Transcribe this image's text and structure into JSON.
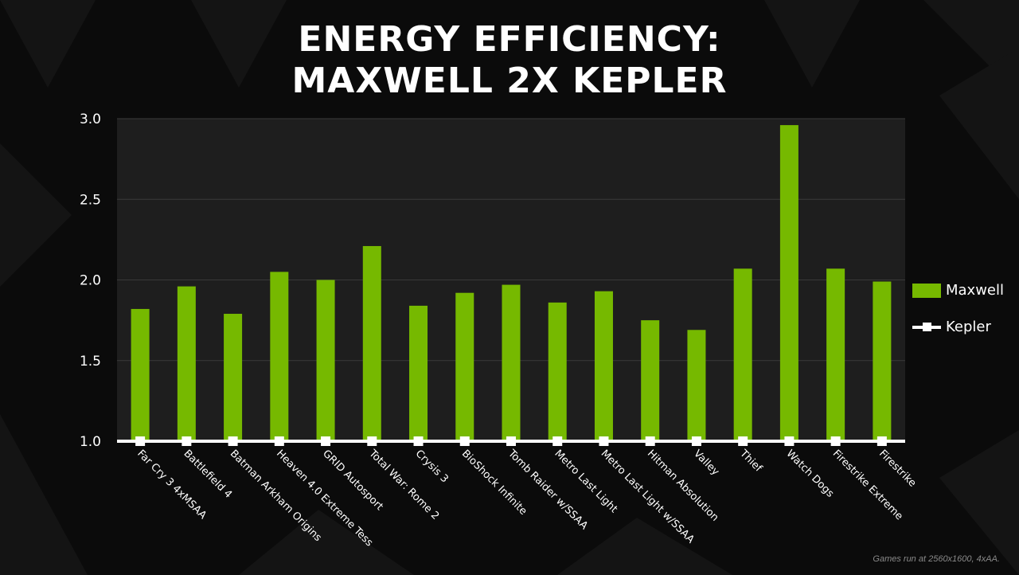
{
  "title_line1": "ENERGY EFFICIENCY:",
  "title_line2": "MAXWELL 2X KEPLER",
  "footnote": "Games run at 2560x1600, 4xAA.",
  "colors": {
    "maxwell": "#76b900",
    "kepler": "#ffffff",
    "plot_bg": "#1e1e1e",
    "grid": "#3a3a3a"
  },
  "legend": {
    "maxwell": "Maxwell",
    "kepler": "Kepler",
    "placement": "right"
  },
  "chart_data": {
    "type": "bar",
    "categories": [
      "Far Cry 3 4xMSAA",
      "Battlefield 4",
      "Batman Arkham Origins",
      "Heaven 4.0 Extreme Tess",
      "GRID Autosport",
      "Total War: Rome 2",
      "Crysis 3",
      "BioShock Infinite",
      "Tomb Raider w/SSAA",
      "Metro Last Light",
      "Metro Last Light w/SSAA",
      "Hitman Absolution",
      "Valley",
      "Thief",
      "Watch Dogs",
      "Firestrike Extreme",
      "Firestrike"
    ],
    "series": [
      {
        "name": "Maxwell",
        "type": "bar",
        "values": [
          1.82,
          1.96,
          1.79,
          2.05,
          2.0,
          2.21,
          1.84,
          1.92,
          1.97,
          1.86,
          1.93,
          1.75,
          1.69,
          2.07,
          2.96,
          2.07,
          1.99
        ]
      },
      {
        "name": "Kepler",
        "type": "line",
        "values": [
          1.0,
          1.0,
          1.0,
          1.0,
          1.0,
          1.0,
          1.0,
          1.0,
          1.0,
          1.0,
          1.0,
          1.0,
          1.0,
          1.0,
          1.0,
          1.0,
          1.0
        ]
      }
    ],
    "yticks": [
      "1.0",
      "1.5",
      "2.0",
      "2.5",
      "3.0"
    ],
    "ylim": [
      1.0,
      3.0
    ],
    "grid": true
  }
}
